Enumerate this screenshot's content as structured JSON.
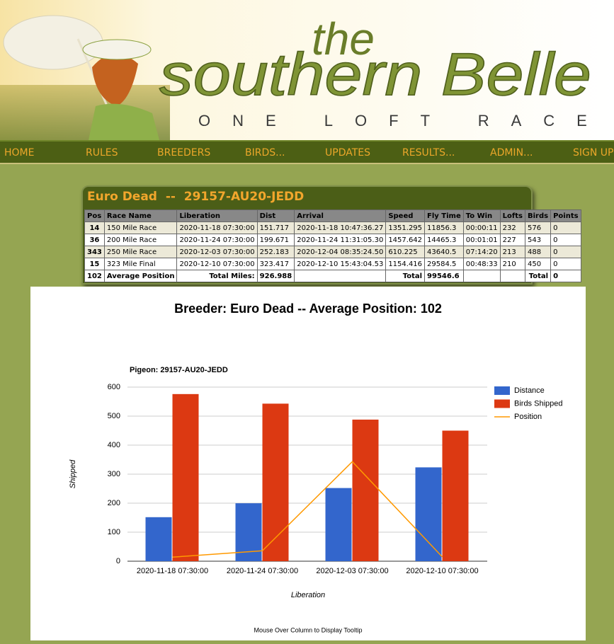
{
  "header": {
    "logo_small": "the",
    "logo": "southern Belle",
    "tagline": "ONE LOFT RACE"
  },
  "nav": [
    "HOME",
    "RULES",
    "BREEDERS",
    "BIRDS...",
    "UPDATES",
    "RESULTS...",
    "ADMIN...",
    "SIGN UP"
  ],
  "table": {
    "title": "Euro Dead  --  29157-AU20-JEDD",
    "columns": [
      "Pos",
      "Race Name",
      "Liberation",
      "Dist",
      "Arrival",
      "Speed",
      "Fly Time",
      "To Win",
      "Lofts",
      "Birds",
      "Points"
    ],
    "rows": [
      [
        "14",
        "150 Mile Race",
        "2020-11-18 07:30:00",
        "151.717",
        "2020-11-18 10:47:36.27",
        "1351.295",
        "11856.3",
        "00:00:11",
        "232",
        "576",
        "0"
      ],
      [
        "36",
        "200 Mile Race",
        "2020-11-24 07:30:00",
        "199.671",
        "2020-11-24 11:31:05.30",
        "1457.642",
        "14465.3",
        "00:01:01",
        "227",
        "543",
        "0"
      ],
      [
        "343",
        "250 Mile Race",
        "2020-12-03 07:30:00",
        "252.183",
        "2020-12-04 08:35:24.50",
        "610.225",
        "43640.5",
        "07:14:20",
        "213",
        "488",
        "0"
      ],
      [
        "15",
        "323 Mile Final",
        "2020-12-10 07:30:00",
        "323.417",
        "2020-12-10 15:43:04.53",
        "1154.416",
        "29584.5",
        "00:48:33",
        "210",
        "450",
        "0"
      ]
    ],
    "footer": {
      "pos": "102",
      "label": "Average Position",
      "miles_label": "Total Miles:",
      "miles": "926.988",
      "speed_label": "Total",
      "fly_time": "99546.6",
      "birds_label": "Total",
      "points": "0"
    }
  },
  "chart_data": {
    "type": "bar",
    "title": "Breeder: Euro Dead -- Average Position: 102",
    "subtitle": "Pigeon: 29157-AU20-JEDD",
    "x_label": "Liberation",
    "y_label": "Shipped",
    "note": "Mouse Over Column to Display Tooltip",
    "categories": [
      "2020-11-18 07:30:00",
      "2020-11-24 07:30:00",
      "2020-12-03 07:30:00",
      "2020-12-10 07:30:00"
    ],
    "series": [
      {
        "name": "Distance",
        "color": "#3366cc",
        "type": "bar",
        "values": [
          151.717,
          199.671,
          252.183,
          323.417
        ]
      },
      {
        "name": "Birds Shipped",
        "color": "#dc3912",
        "type": "bar",
        "values": [
          576,
          543,
          488,
          450
        ]
      },
      {
        "name": "Position",
        "color": "#ff9900",
        "type": "line",
        "values": [
          14,
          36,
          343,
          15
        ]
      }
    ],
    "ylim": [
      0,
      600
    ],
    "yticks": [
      0,
      100,
      200,
      300,
      400,
      500,
      600
    ],
    "grid": true,
    "legend": "right"
  }
}
